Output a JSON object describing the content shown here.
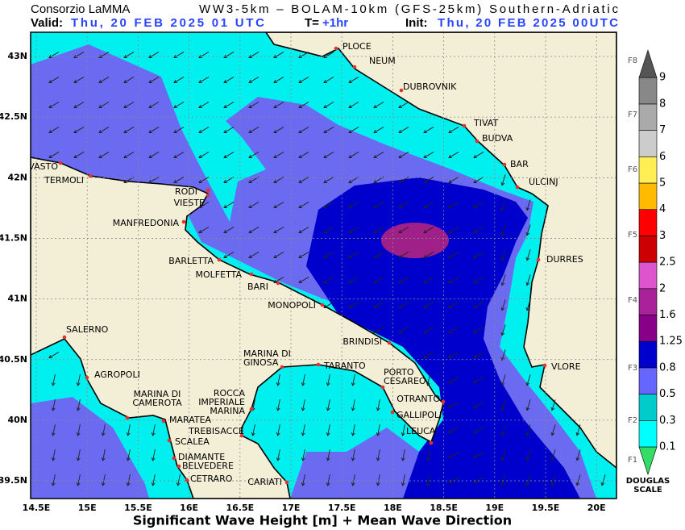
{
  "header": {
    "org": "Consorzio LaMMA",
    "model": "WW3-5km – BOLAM-10km (GFS-25km) Southern-Adriatic",
    "valid_label": "Valid:",
    "valid_time": "Thu, 20 FEB 2025  01 UTC",
    "step_label": "T=",
    "step": "+1hr",
    "init_label": "Init:",
    "init_time": "Thu, 20 FEB 2025 00UTC"
  },
  "lat_labels": [
    "43N",
    "42.5N",
    "42N",
    "41.5N",
    "41N",
    "40.5N",
    "40N",
    "39.5N"
  ],
  "lon_labels": [
    "14.5E",
    "15E",
    "15.5E",
    "16E",
    "16.5E",
    "17E",
    "17.5E",
    "18E",
    "18.5E",
    "19E",
    "19.5E",
    "20E"
  ],
  "cities": [
    [
      "PLOCE"
    ],
    [
      "NEUM"
    ],
    [
      "DUBROVNIK"
    ],
    [
      "TIVAT"
    ],
    [
      "BUDVA"
    ],
    [
      "BAR"
    ],
    [
      "ULCINJ"
    ],
    [
      "DURRES"
    ],
    [
      "VLORE"
    ],
    [
      "VASTO"
    ],
    [
      "TERMOLI"
    ],
    [
      "RODI"
    ],
    [
      "VIESTE"
    ],
    [
      "MANFREDONIA"
    ],
    [
      "BARLETTA"
    ],
    [
      "MOLFETTA"
    ],
    [
      "BARI"
    ],
    [
      "MONOPOLI"
    ],
    [
      "BRINDISI"
    ],
    [
      "SALERNO"
    ],
    [
      "AGROPOLI"
    ],
    [
      "MARINA DI",
      "CAMEROTA"
    ],
    [
      "MARATEA"
    ],
    [
      "ROCCA",
      "IMPERIALE",
      "MARINA"
    ],
    [
      "MARINA DI",
      "GINOSA"
    ],
    [
      "TARANTO"
    ],
    [
      "PORTO",
      "CESAREO"
    ],
    [
      "OTRANTO"
    ],
    [
      "GALLIPOLI"
    ],
    [
      "LEUCA"
    ],
    [
      "TREBISACCE"
    ],
    [
      "SCALEA"
    ],
    [
      "DIAMANTE"
    ],
    [
      "BELVEDERE"
    ],
    [
      "CETRARO"
    ],
    [
      "CARIATI"
    ]
  ],
  "legend": {
    "levels": [
      "0.1",
      "0.3",
      "0.5",
      "0.8",
      "1.25",
      "1.6",
      "2",
      "2.5",
      "3",
      "4",
      "5",
      "6",
      "7",
      "8",
      "9"
    ],
    "colors": [
      "#33dd66",
      "#00ffff",
      "#00cccc",
      "#6666ff",
      "#0000cc",
      "#880088",
      "#aa2299",
      "#dd55cc",
      "#cc0000",
      "#ff0000",
      "#ffbb00",
      "#ffee55",
      "#cccccc",
      "#aaaaaa",
      "#888888",
      "#555555"
    ],
    "douglas": [
      "F1",
      "F2",
      "F3",
      "F4",
      "F5",
      "F6",
      "F7",
      "F8"
    ],
    "scale_title": [
      "DOUGLAS",
      "SCALE"
    ]
  },
  "footer": "Significant Wave Height [m] + Mean Wave Direction"
}
